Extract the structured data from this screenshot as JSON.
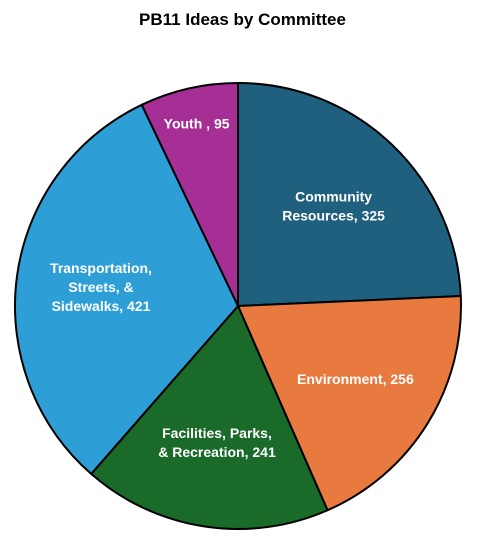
{
  "chart_data": {
    "type": "pie",
    "title": "PB11 Ideas by Committee",
    "slices": [
      {
        "label": "Community Resources",
        "value": 325,
        "display_lines": [
          "Community",
          "Resources, 325"
        ],
        "color": "#20607f"
      },
      {
        "label": "Environment",
        "value": 256,
        "display_lines": [
          "Environment, 256"
        ],
        "color": "#e8793f"
      },
      {
        "label": "Facilities, Parks, & Recreation",
        "value": 241,
        "display_lines": [
          "Facilities, Parks,",
          "& Recreation, 241"
        ],
        "color": "#1a6a2a"
      },
      {
        "label": "Transportation, Streets, & Sidewalks",
        "value": 421,
        "display_lines": [
          "Transportation,",
          "Streets, &",
          "Sidewalks, 421"
        ],
        "color": "#2e9fd6"
      },
      {
        "label": "Youth",
        "value": 95,
        "display_lines": [
          "Youth , 95"
        ],
        "color": "#a52f94"
      }
    ]
  }
}
